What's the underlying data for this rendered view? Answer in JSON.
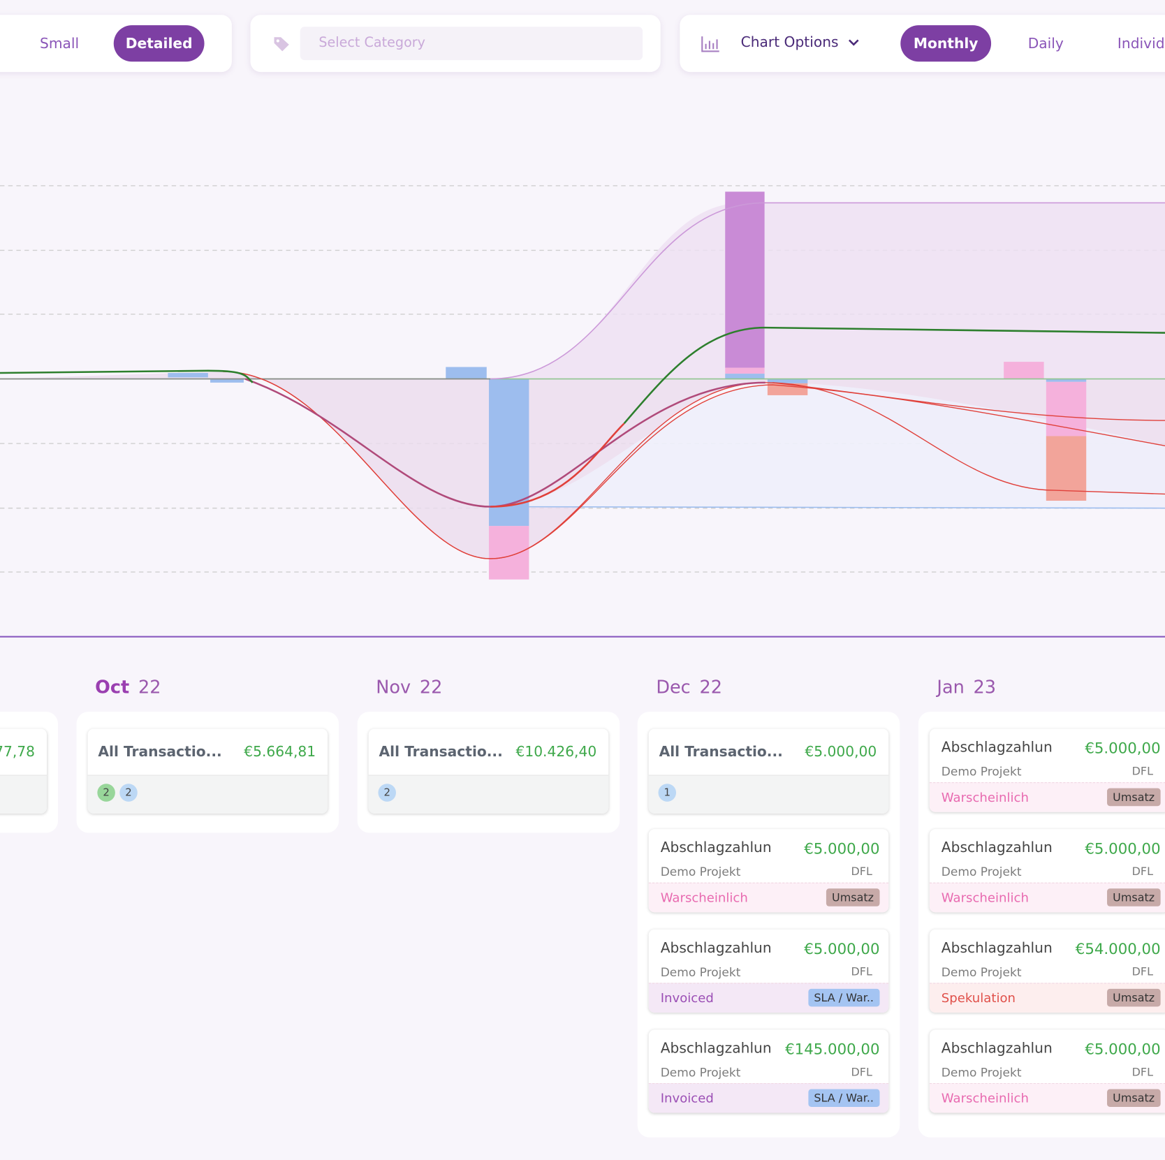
{
  "toolbar": {
    "view_toggle": [
      "Small",
      "Detailed"
    ],
    "view_active": 1,
    "category_placeholder": "Select Category",
    "chart_options": "Chart Options",
    "intervals": [
      "Monthly",
      "Daily",
      "Individ"
    ],
    "interval_active": 0
  },
  "columns": [
    {
      "summary": {
        "amount": "77,78"
      }
    },
    {
      "month": "Oct",
      "year": "22",
      "current": true,
      "summary": {
        "title": "All Transactio...",
        "amount": "€5.664,81",
        "badges": [
          {
            "count": "2",
            "color": "#98d69a"
          },
          {
            "count": "2",
            "color": "#bcd8f5"
          }
        ]
      }
    },
    {
      "month": "Nov",
      "year": "22",
      "summary": {
        "title": "All Transactio...",
        "amount": "€10.426,40",
        "badges": [
          {
            "count": "2",
            "color": "#bcd8f5"
          }
        ]
      }
    },
    {
      "month": "Dec",
      "year": "22",
      "summary": {
        "title": "All Transactio...",
        "amount": "€5.000,00",
        "badges": [
          {
            "count": "1",
            "color": "#bcd8f5"
          }
        ]
      },
      "cards": [
        {
          "title": "Abschlagzahlun",
          "amount": "€5.000,00",
          "project": "Demo Projekt",
          "org": "DFL",
          "status": "Warscheinlich",
          "tag": "Umsatz"
        },
        {
          "title": "Abschlagzahlun",
          "amount": "€5.000,00",
          "project": "Demo Projekt",
          "org": "DFL",
          "status": "Invoiced",
          "tag": "SLA / War.."
        },
        {
          "title": "Abschlagzahlun",
          "amount": "€145.000,00",
          "project": "Demo Projekt",
          "org": "DFL",
          "status": "Invoiced",
          "tag": "SLA / War.."
        }
      ]
    },
    {
      "month": "Jan",
      "year": "23",
      "cards": [
        {
          "title": "Abschlagzahlun",
          "amount": "€5.000,00",
          "project": "Demo Projekt",
          "org": "DFL",
          "status": "Warscheinlich",
          "tag": "Umsatz"
        },
        {
          "title": "Abschlagzahlun",
          "amount": "€5.000,00",
          "project": "Demo Projekt",
          "org": "DFL",
          "status": "Warscheinlich",
          "tag": "Umsatz"
        },
        {
          "title": "Abschlagzahlun",
          "amount": "€54.000,00",
          "project": "Demo Projekt",
          "org": "DFL",
          "status": "Spekulation",
          "tag": "Umsatz"
        },
        {
          "title": "Abschlagzahlun",
          "amount": "€5.000,00",
          "project": "Demo Projekt",
          "org": "DFL",
          "status": "Warscheinlich",
          "tag": "Umsatz"
        }
      ]
    }
  ]
}
